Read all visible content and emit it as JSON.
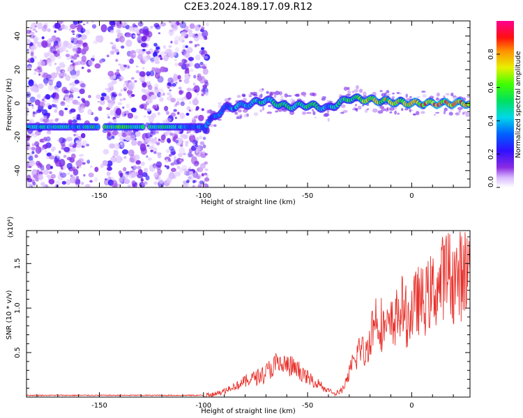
{
  "title": "C2E3.2024.189.17.09.R12",
  "colors": {
    "snr_line": "#e8322c",
    "frame": "#000000",
    "background": "#ffffff"
  },
  "chart_data": [
    {
      "type": "heatmap",
      "xlabel": "Height of straight line (km)",
      "ylabel": "Frequency (Hz)",
      "xlim": [
        -185,
        28
      ],
      "ylim": [
        -50,
        49
      ],
      "x_ticks": [
        -150,
        -100,
        -50,
        0
      ],
      "x_tick_labels": [
        "-150",
        "-100",
        "-50",
        "0"
      ],
      "y_ticks": [
        -40,
        -20,
        0,
        20,
        40
      ],
      "y_tick_labels": [
        "-40",
        "-20",
        "0",
        "20",
        "40"
      ],
      "colorbar": {
        "label": "Normalized spectral amplitude",
        "range": [
          0.0,
          1.0
        ],
        "ticks": [
          0.0,
          0.2,
          0.4,
          0.6,
          0.8
        ],
        "tick_labels": [
          "0.0",
          "0.2",
          "0.4",
          "0.6",
          "0.8"
        ],
        "colormap": "rainbow (white→violet→blue→cyan→green→yellow→orange→red→magenta)"
      },
      "ridge": {
        "description": "dominant frequency ridge vs height",
        "x": [
          -185,
          -160,
          -140,
          -120,
          -100,
          -90,
          -80,
          -70,
          -60,
          -50,
          -40,
          -30,
          -20,
          -10,
          0,
          10,
          20,
          28
        ],
        "y": [
          -14,
          -14,
          -14,
          -14,
          -14,
          -3,
          -1,
          2,
          -2,
          -1,
          -3,
          3,
          2,
          1,
          0,
          0,
          0,
          0
        ],
        "amplitude": [
          0.45,
          0.4,
          0.55,
          0.5,
          0.3,
          0.35,
          0.4,
          0.45,
          0.5,
          0.5,
          0.4,
          0.55,
          0.65,
          0.7,
          0.75,
          0.8,
          0.85,
          0.85
        ]
      },
      "noise_region_x": [
        -185,
        -98
      ]
    },
    {
      "type": "line",
      "xlabel": "Height of straight line (km)",
      "ylabel": "SNR (10 * v/v)",
      "y_multiplier": "(x10⁴)",
      "xlim": [
        -185,
        28
      ],
      "ylim": [
        0,
        1.87
      ],
      "x_ticks": [
        -150,
        -100,
        -50,
        0
      ],
      "x_tick_labels": [
        "-150",
        "-100",
        "-50",
        "0"
      ],
      "y_ticks": [
        0.5,
        1.0,
        1.5
      ],
      "y_tick_labels": [
        "0.5",
        "1.0",
        "1.5"
      ],
      "series": [
        {
          "x": [
            -185,
            -170,
            -150,
            -130,
            -110,
            -100,
            -95,
            -90,
            -85,
            -80,
            -75,
            -70,
            -65,
            -60,
            -55,
            -50,
            -45,
            -40,
            -37,
            -35,
            -32,
            -30,
            -27,
            -25,
            -22,
            -20,
            -17,
            -15,
            -12,
            -10,
            -7,
            -5,
            -2,
            0,
            3,
            5,
            8,
            10,
            13,
            15,
            18,
            20,
            23,
            25,
            28
          ],
          "y": [
            0.02,
            0.02,
            0.02,
            0.02,
            0.02,
            0.02,
            0.04,
            0.08,
            0.14,
            0.2,
            0.26,
            0.32,
            0.42,
            0.4,
            0.35,
            0.24,
            0.18,
            0.08,
            0.04,
            0.06,
            0.14,
            0.3,
            0.5,
            0.65,
            0.55,
            0.8,
            1.05,
            0.95,
            0.85,
            0.9,
            1.05,
            1.15,
            1.0,
            1.1,
            1.25,
            1.2,
            1.3,
            1.35,
            1.4,
            1.55,
            1.6,
            1.5,
            1.55,
            1.6,
            1.65
          ]
        }
      ]
    }
  ]
}
